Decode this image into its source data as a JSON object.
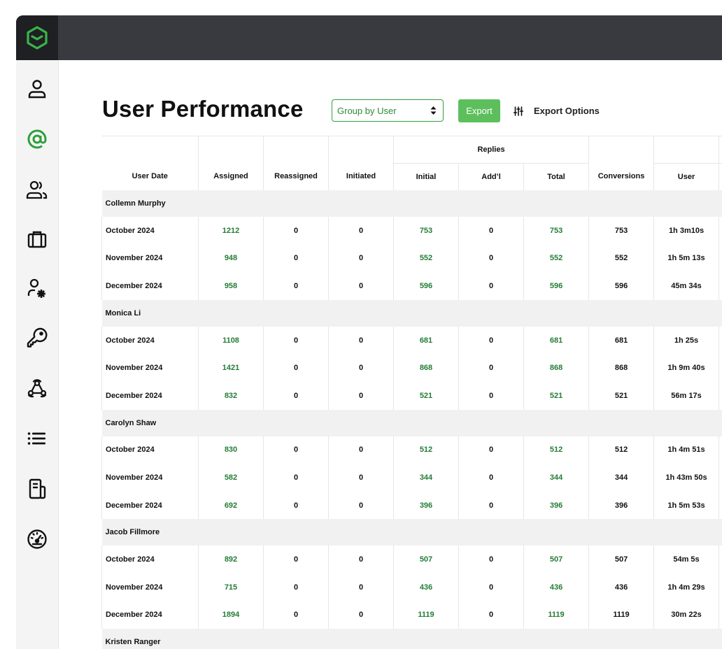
{
  "page": {
    "title": "User Performance",
    "group_select": {
      "value": "Group by User"
    },
    "export_label": "Export",
    "export_options_label": "Export Options"
  },
  "sidebar": {
    "items": [
      {
        "icon": "user-icon"
      },
      {
        "icon": "at-icon"
      },
      {
        "icon": "users-icon"
      },
      {
        "icon": "briefcase-icon"
      },
      {
        "icon": "user-settings-icon"
      },
      {
        "icon": "key-icon"
      },
      {
        "icon": "webhook-icon"
      },
      {
        "icon": "list-icon"
      },
      {
        "icon": "document-icon"
      },
      {
        "icon": "dashboard-icon"
      }
    ],
    "accent": "#2e9e3b"
  },
  "colors": {
    "accent": "#5cbf5c",
    "green_text": "#237c36",
    "topbar": "#383a3f"
  },
  "table": {
    "group_header": "Replies",
    "columns": [
      "User Date",
      "Assigned",
      "Reassigned",
      "Initiated",
      "Initial",
      "Add’l",
      "Total",
      "Conversions",
      "User"
    ],
    "groups": [
      {
        "name": "Collemn Murphy",
        "rows": [
          [
            "October 2024",
            "1212",
            "0",
            "0",
            "753",
            "0",
            "753",
            "753",
            "1h 3m10s"
          ],
          [
            "November 2024",
            "948",
            "0",
            "0",
            "552",
            "0",
            "552",
            "552",
            "1h 5m 13s"
          ],
          [
            "December 2024",
            "958",
            "0",
            "0",
            "596",
            "0",
            "596",
            "596",
            "45m 34s"
          ]
        ]
      },
      {
        "name": "Monica Li",
        "rows": [
          [
            "October 2024",
            "1108",
            "0",
            "0",
            "681",
            "0",
            "681",
            "681",
            "1h 25s"
          ],
          [
            "November 2024",
            "1421",
            "0",
            "0",
            "868",
            "0",
            "868",
            "868",
            "1h 9m 40s"
          ],
          [
            "December 2024",
            "832",
            "0",
            "0",
            "521",
            "0",
            "521",
            "521",
            "56m 17s"
          ]
        ]
      },
      {
        "name": "Carolyn Shaw",
        "rows": [
          [
            "October 2024",
            "830",
            "0",
            "0",
            "512",
            "0",
            "512",
            "512",
            "1h 4m 51s"
          ],
          [
            "November 2024",
            "582",
            "0",
            "0",
            "344",
            "0",
            "344",
            "344",
            "1h 43m 50s"
          ],
          [
            "December 2024",
            "692",
            "0",
            "0",
            "396",
            "0",
            "396",
            "396",
            "1h 5m 53s"
          ]
        ]
      },
      {
        "name": "Jacob Fillmore",
        "rows": [
          [
            "October 2024",
            "892",
            "0",
            "0",
            "507",
            "0",
            "507",
            "507",
            "54m 5s"
          ],
          [
            "November 2024",
            "715",
            "0",
            "0",
            "436",
            "0",
            "436",
            "436",
            "1h 4m 29s"
          ],
          [
            "December 2024",
            "1894",
            "0",
            "0",
            "1119",
            "0",
            "1119",
            "1119",
            "30m 22s"
          ]
        ]
      },
      {
        "name": "Kristen Ranger",
        "rows": []
      }
    ]
  }
}
